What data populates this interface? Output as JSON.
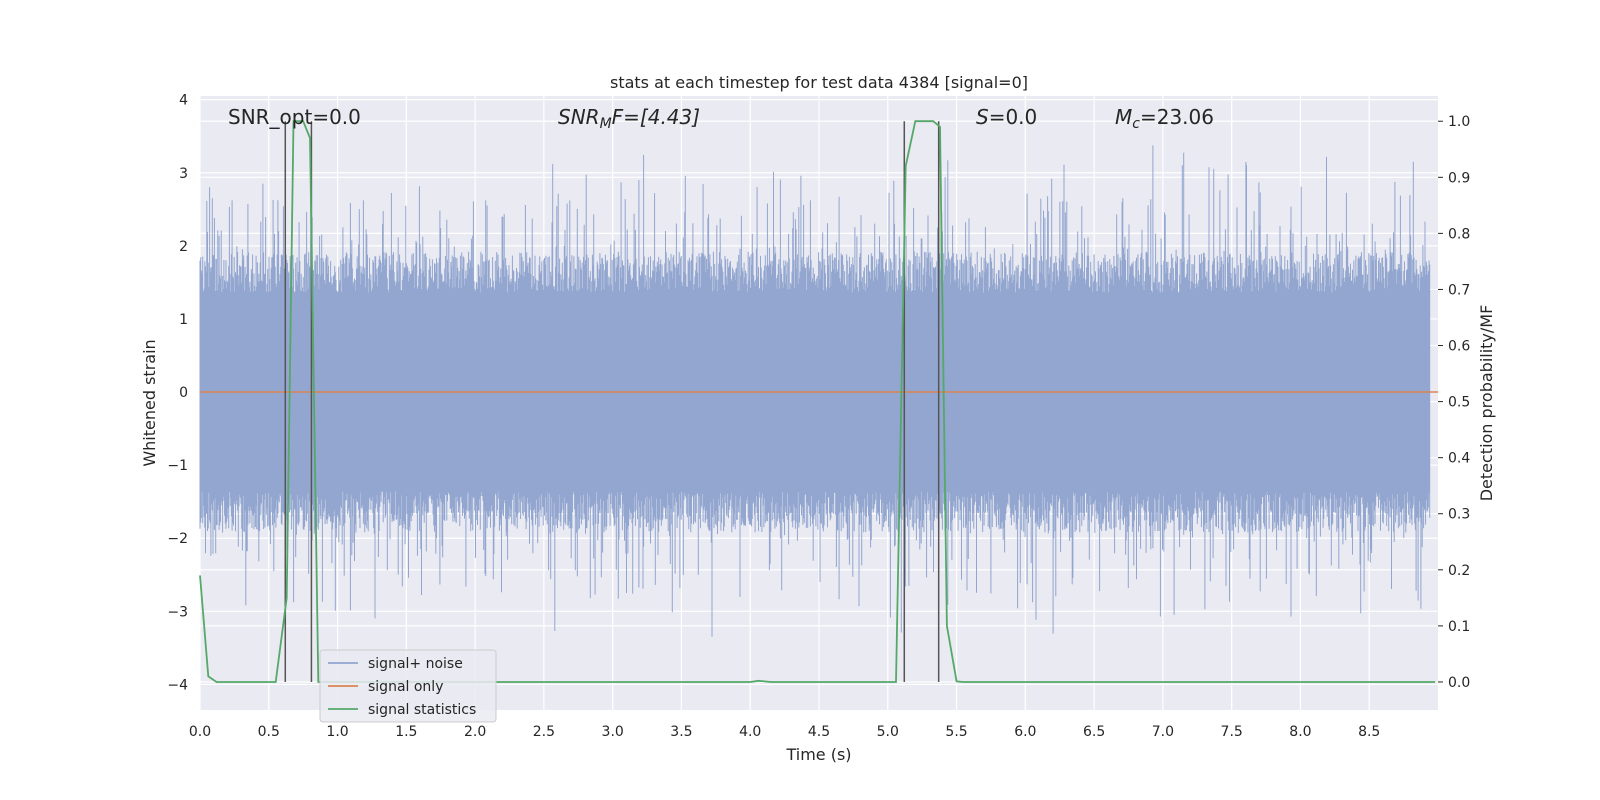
{
  "chart_data": {
    "type": "line",
    "title": "stats at each timestep for test data 4384 [signal=0]",
    "xlabel": "Time (s)",
    "ylabel": "Whitened strain",
    "ylabel_right": "Detection probability/MF",
    "xlim": [
      0.0,
      9.0
    ],
    "ylim": [
      -4.35,
      4.05
    ],
    "ylim_right": [
      -0.05,
      1.045
    ],
    "x_ticks": [
      "0.0",
      "0.5",
      "1.0",
      "1.5",
      "2.0",
      "2.5",
      "3.0",
      "3.5",
      "4.0",
      "4.5",
      "5.0",
      "5.5",
      "6.0",
      "6.5",
      "7.0",
      "7.5",
      "8.0",
      "8.5"
    ],
    "y_ticks": [
      "−4",
      "−3",
      "−2",
      "−1",
      "0",
      "1",
      "2",
      "3",
      "4"
    ],
    "y_ticks_right": [
      "0.0",
      "0.1",
      "0.2",
      "0.3",
      "0.4",
      "0.5",
      "0.6",
      "0.7",
      "0.8",
      "0.9",
      "1.0"
    ],
    "grid": true,
    "legend_position": "lower-left",
    "annotations": {
      "snr_opt": "SNR_opt=0.0",
      "snr_mf_base": "SNR",
      "snr_mf_sub": "M",
      "snr_mf_rest": "F=[4.43]",
      "s_italic": "S",
      "s_rest": "=0.0",
      "mc_base": "M",
      "mc_sub": "c",
      "mc_rest": "=23.06"
    },
    "series": [
      {
        "name": "signal+ noise",
        "color": "#92a6cf",
        "amplitude_core": 1.6,
        "amplitude_peak": 3.4
      },
      {
        "name": "signal only",
        "color": "#dd8452",
        "values": [
          0,
          0
        ]
      },
      {
        "name": "signal statistics",
        "color": "#55a868",
        "axis": "right",
        "x": [
          0.0,
          0.06,
          0.12,
          0.55,
          0.63,
          0.68,
          0.7,
          0.75,
          0.8,
          0.86,
          0.9,
          4.0,
          4.06,
          4.15,
          5.06,
          5.13,
          5.2,
          5.33,
          5.38,
          5.43,
          5.5,
          5.55,
          8.98
        ],
        "values": [
          0.19,
          0.01,
          0.0,
          0.0,
          0.15,
          1.0,
          1.0,
          1.0,
          0.97,
          0.0,
          0.0,
          0.0,
          0.002,
          0.0,
          0.0,
          0.92,
          1.0,
          1.0,
          0.99,
          0.1,
          0.001,
          0.0,
          0.0
        ]
      }
    ],
    "vertical_lines": [
      0.62,
      0.81,
      5.12,
      5.37
    ],
    "vertical_line_color": "#555555"
  }
}
